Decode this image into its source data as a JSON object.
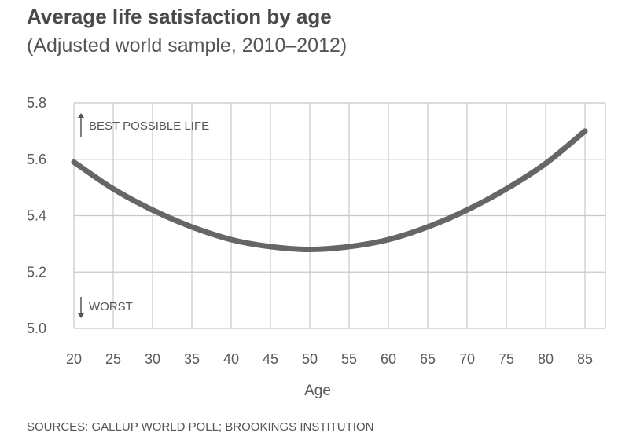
{
  "chart_data": {
    "type": "line",
    "title": "Average life satisfaction by age",
    "subtitle": "(Adjusted world sample, 2010–2012)",
    "xlabel": "Age",
    "ylabel": "",
    "x": [
      20,
      25,
      30,
      35,
      40,
      45,
      50,
      55,
      60,
      65,
      70,
      75,
      80,
      85
    ],
    "xlim": [
      20,
      85
    ],
    "ylim": [
      5.0,
      5.8
    ],
    "yticks": [
      5.0,
      5.2,
      5.4,
      5.6,
      5.8
    ],
    "ytick_labels": [
      "5.0",
      "5.2",
      "5.4",
      "5.6",
      "5.8"
    ],
    "grid": true,
    "series": [
      {
        "name": "Average life satisfaction",
        "color": "#666666",
        "values": [
          5.59,
          5.495,
          5.42,
          5.36,
          5.315,
          5.29,
          5.28,
          5.29,
          5.315,
          5.36,
          5.42,
          5.495,
          5.585,
          5.7
        ]
      }
    ],
    "annotations": [
      {
        "id": "best",
        "text": "BEST POSSIBLE LIFE",
        "arrow": "up"
      },
      {
        "id": "worst",
        "text": "WORST",
        "arrow": "down"
      }
    ],
    "source": "SOURCES: GALLUP WORLD POLL; BROOKINGS INSTITUTION"
  }
}
